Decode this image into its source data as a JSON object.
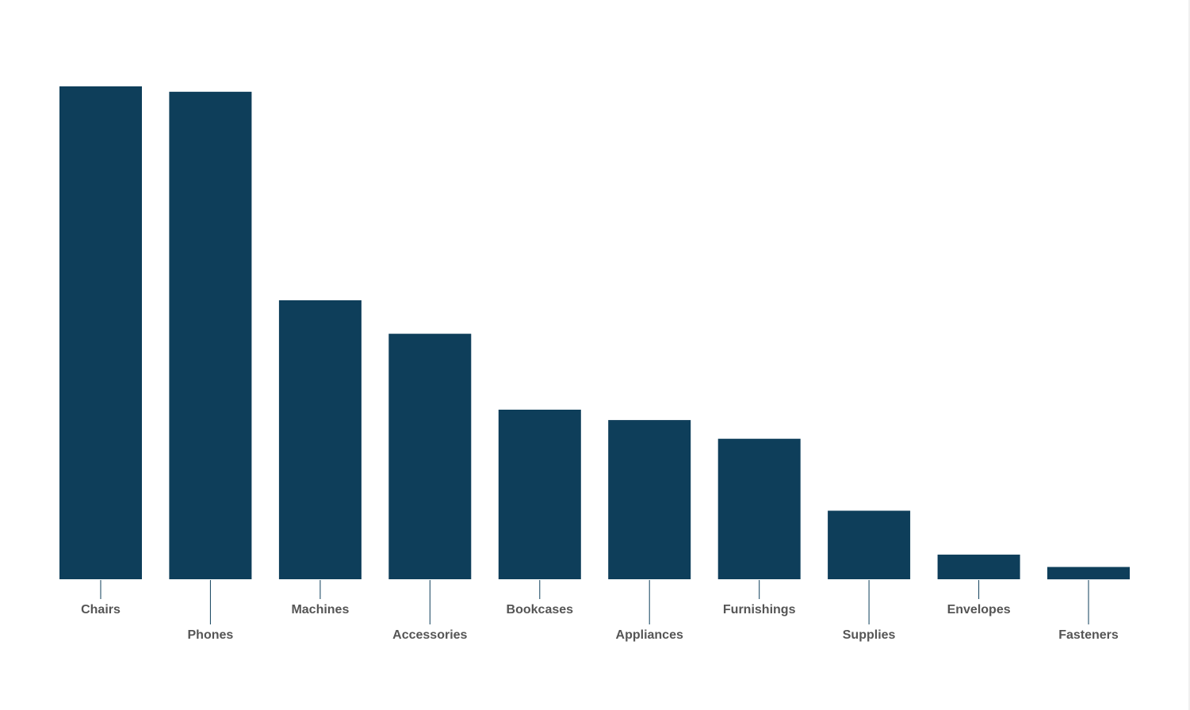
{
  "chart_data": {
    "type": "bar",
    "categories": [
      "Chairs",
      "Phones",
      "Machines",
      "Accessories",
      "Bookcases",
      "Appliances",
      "Furnishings",
      "Supplies",
      "Envelopes",
      "Fasteners"
    ],
    "values": [
      100,
      98.9,
      56.6,
      49.8,
      34.4,
      32.3,
      28.5,
      13.9,
      5,
      2.5
    ],
    "title": "",
    "xlabel": "",
    "ylabel": "",
    "ylim": [
      0,
      100
    ],
    "grid": false,
    "bar_color": "#0e3e5a",
    "label_color": "#555555"
  }
}
